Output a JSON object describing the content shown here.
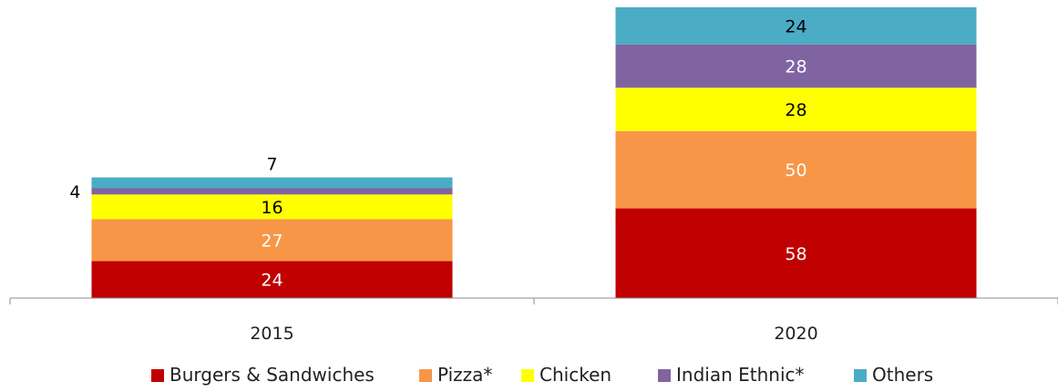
{
  "chart_data": {
    "type": "bar",
    "stacked": true,
    "title": "",
    "xlabel": "",
    "ylabel": "",
    "categories": [
      "2015",
      "2020"
    ],
    "series": [
      {
        "name": "Burgers & Sandwiches",
        "color": "#C00000",
        "label_color": "#ffffff",
        "values": [
          24,
          58
        ]
      },
      {
        "name": "Pizza*",
        "color": "#F79646",
        "label_color": "#ffffff",
        "values": [
          27,
          50
        ]
      },
      {
        "name": "Chicken",
        "color": "#FFFF00",
        "label_color": "#000000",
        "values": [
          16,
          28
        ]
      },
      {
        "name": "Indian Ethnic*",
        "color": "#8064A2",
        "label_color": "#ffffff",
        "values": [
          4,
          28
        ]
      },
      {
        "name": "Others",
        "color": "#4BACC6",
        "label_color": "#000000",
        "values": [
          7,
          24
        ]
      }
    ],
    "ylim": [
      0,
      188
    ],
    "y_axis_visible": false,
    "grid": false,
    "legend_position": "bottom"
  }
}
